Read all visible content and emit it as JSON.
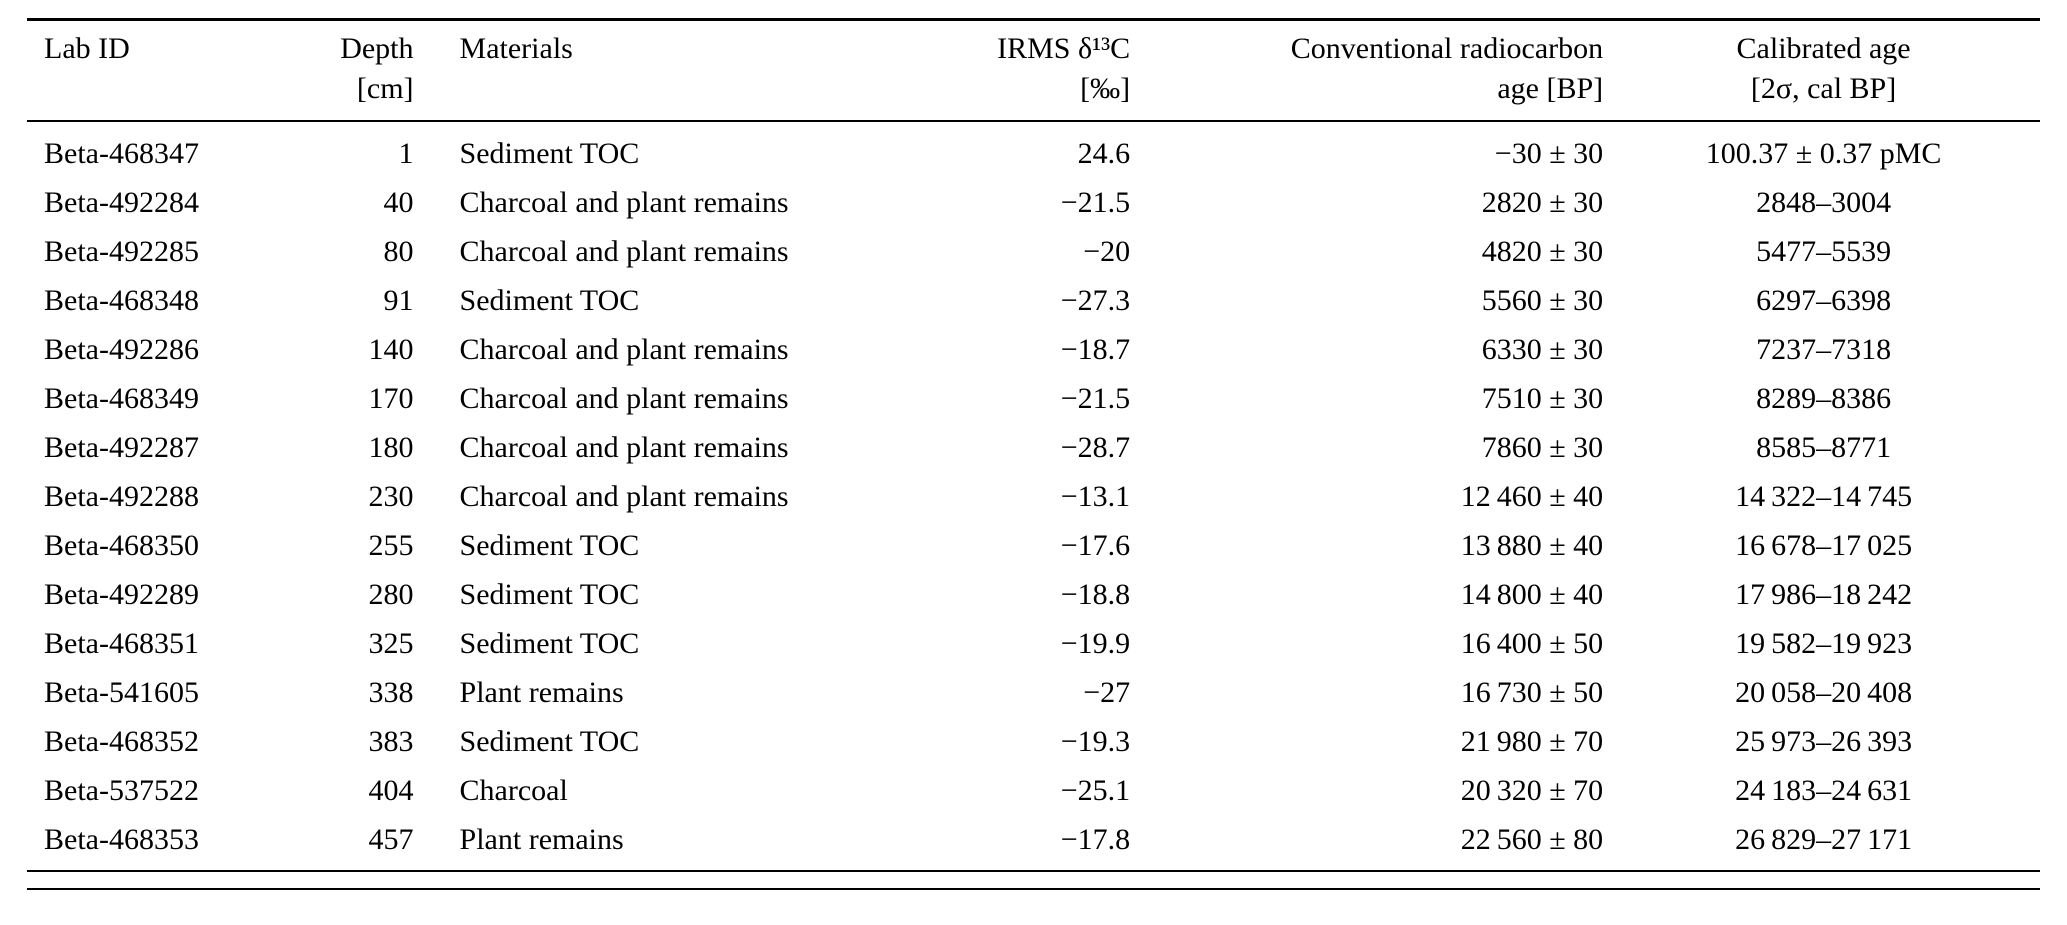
{
  "page": {
    "background_color": "#ffffff",
    "text_color": "#000000"
  },
  "table": {
    "columns": [
      {
        "key": "lab-id",
        "line1": "Lab ID",
        "line2": "",
        "align": "left"
      },
      {
        "key": "depth",
        "line1": "Depth",
        "line2": "[cm]",
        "align": "right"
      },
      {
        "key": "materials",
        "line1": "Materials",
        "line2": "",
        "align": "left"
      },
      {
        "key": "irms-d13c",
        "line1": "IRMS δ¹³C",
        "line2": "[‰]",
        "align": "right"
      },
      {
        "key": "conventional-age",
        "line1": "Conventional radiocarbon",
        "line2": "age [BP]",
        "align": "right"
      },
      {
        "key": "calibrated-age",
        "line1": "Calibrated age",
        "line2": "[2σ, cal BP]",
        "align": "center"
      }
    ],
    "rows": [
      [
        "Beta-468347",
        "1",
        "Sediment TOC",
        "24.6",
        "−30 ± 30",
        "100.37 ± 0.37 pMC"
      ],
      [
        "Beta-492284",
        "40",
        "Charcoal and plant remains",
        "−21.5",
        "2820 ± 30",
        "2848–3004"
      ],
      [
        "Beta-492285",
        "80",
        "Charcoal and plant remains",
        "−20",
        "4820 ± 30",
        "5477–5539"
      ],
      [
        "Beta-468348",
        "91",
        "Sediment TOC",
        "−27.3",
        "5560 ± 30",
        "6297–6398"
      ],
      [
        "Beta-492286",
        "140",
        "Charcoal and plant remains",
        "−18.7",
        "6330 ± 30",
        "7237–7318"
      ],
      [
        "Beta-468349",
        "170",
        "Charcoal and plant remains",
        "−21.5",
        "7510 ± 30",
        "8289–8386"
      ],
      [
        "Beta-492287",
        "180",
        "Charcoal and plant remains",
        "−28.7",
        "7860 ± 30",
        "8585–8771"
      ],
      [
        "Beta-492288",
        "230",
        "Charcoal and plant remains",
        "−13.1",
        "12 460 ± 40",
        "14 322–14 745"
      ],
      [
        "Beta-468350",
        "255",
        "Sediment TOC",
        "−17.6",
        "13 880 ± 40",
        "16 678–17 025"
      ],
      [
        "Beta-492289",
        "280",
        "Sediment TOC",
        "−18.8",
        "14 800 ± 40",
        "17 986–18 242"
      ],
      [
        "Beta-468351",
        "325",
        "Sediment TOC",
        "−19.9",
        "16 400 ± 50",
        "19 582–19 923"
      ],
      [
        "Beta-541605",
        "338",
        "Plant remains",
        "−27",
        "16 730 ± 50",
        "20 058–20 408"
      ],
      [
        "Beta-468352",
        "383",
        "Sediment TOC",
        "−19.3",
        "21 980 ± 70",
        "25 973–26 393"
      ],
      [
        "Beta-537522",
        "404",
        "Charcoal",
        "−25.1",
        "20 320 ± 70",
        "24 183–24 631"
      ],
      [
        "Beta-468353",
        "457",
        "Plant remains",
        "−17.8",
        "22 560 ± 80",
        "26 829–27 171"
      ]
    ]
  }
}
